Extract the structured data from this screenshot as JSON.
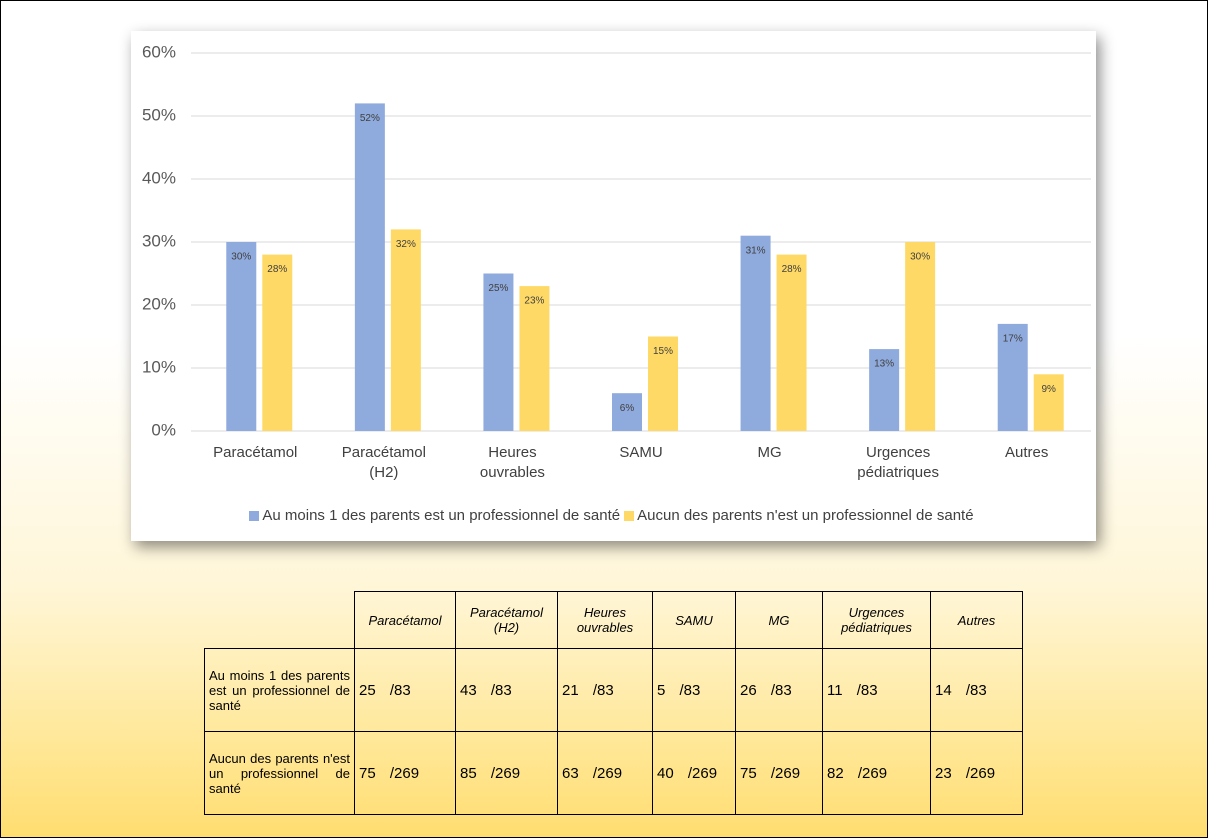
{
  "chart_data": {
    "type": "bar",
    "categories": [
      "Paracétamol",
      "Paracétamol (H2)",
      "Heures ouvrables",
      "SAMU",
      "MG",
      "Urgences pédiatriques",
      "Autres"
    ],
    "series": [
      {
        "name": "Au moins 1 des parents est un professionnel de santé",
        "color": "#8faadc",
        "values": [
          30,
          52,
          25,
          6,
          31,
          13,
          17
        ],
        "value_labels": [
          "30%",
          "52%",
          "25%",
          "6%",
          "31%",
          "13%",
          "17%"
        ]
      },
      {
        "name": "Aucun des parents n'est un professionnel de santé",
        "color": "#ffd966",
        "values": [
          28,
          32,
          23,
          15,
          28,
          30,
          9
        ],
        "value_labels": [
          "28%",
          "32%",
          "23%",
          "15%",
          "28%",
          "30%",
          "9%"
        ]
      }
    ],
    "ylim": [
      0,
      60
    ],
    "yticks": [
      {
        "value": 0,
        "label": "0%"
      },
      {
        "value": 10,
        "label": "10%"
      },
      {
        "value": 20,
        "label": "20%"
      },
      {
        "value": 30,
        "label": "30%"
      },
      {
        "value": 40,
        "label": "40%"
      },
      {
        "value": 50,
        "label": "50%"
      },
      {
        "value": 60,
        "label": "60%"
      }
    ],
    "grid": true,
    "legend": "bottom"
  },
  "table": {
    "header": [
      "Paracétamol",
      "Paracétamol (H2)",
      "Heures ouvrables",
      "SAMU",
      "MG",
      "Urgences pédiatriques",
      "Autres"
    ],
    "rows": [
      [
        "Au moins 1 des parents est un professionnel de santé",
        "25 /83",
        "43 /83",
        "21 /83",
        "5 /83",
        "26 /83",
        "11 /83",
        "14 /83"
      ],
      [
        "Aucun des parents n'est un professionnel de santé",
        "75 /269",
        "85 /269",
        "63 /269",
        "40 /269",
        "75 /269",
        "82 /269",
        "23 /269"
      ]
    ]
  }
}
